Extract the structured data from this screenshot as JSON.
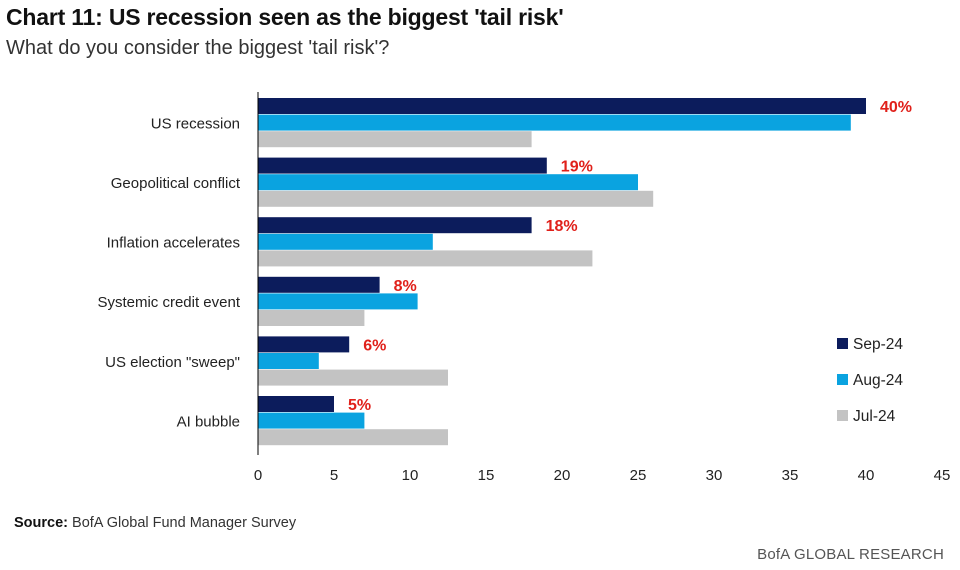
{
  "title": "Chart 11: US recession seen as the biggest 'tail risk'",
  "subtitle": "What do you consider the biggest 'tail risk'?",
  "source_label": "Source:",
  "source_text": "BofA Global Fund Manager Survey",
  "brand": "BofA GLOBAL RESEARCH",
  "colors": {
    "sep": "#0c1c5c",
    "aug": "#0aa3e0",
    "jul": "#c3c3c3",
    "label": "#e0201a"
  },
  "chart_data": {
    "type": "bar",
    "orientation": "horizontal",
    "categories": [
      "US recession",
      "Geopolitical conflict",
      "Inflation accelerates",
      "Systemic credit event",
      "US election \"sweep\"",
      "AI bubble"
    ],
    "series": [
      {
        "name": "Sep-24",
        "values": [
          40,
          19,
          18,
          8,
          6,
          5
        ],
        "labels": [
          "40%",
          "19%",
          "18%",
          "8%",
          "6%",
          "5%"
        ]
      },
      {
        "name": "Aug-24",
        "values": [
          39,
          25,
          11.5,
          10.5,
          4,
          7
        ],
        "labels": []
      },
      {
        "name": "Jul-24",
        "values": [
          18,
          26,
          22,
          7,
          12.5,
          12.5
        ],
        "labels": []
      }
    ],
    "xlim": [
      0,
      45
    ],
    "xticks": [
      "0",
      "5",
      "10",
      "15",
      "20",
      "25",
      "30",
      "35",
      "40",
      "45"
    ],
    "legend_position": "right",
    "grid": false
  }
}
